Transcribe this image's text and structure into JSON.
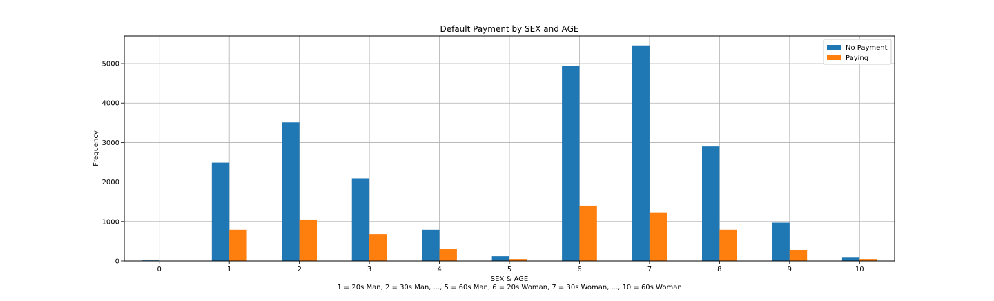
{
  "chart_data": {
    "type": "bar",
    "title": "Default Payment by SEX and AGE",
    "xlabel": "SEX & AGE",
    "xlabel_subtitle": "1 = 20s Man, 2 = 30s Man, ..., 5 = 60s Man, 6 = 20s Woman, 7 = 30s Woman, ..., 10 = 60s Woman",
    "ylabel": "Frequency",
    "categories": [
      "0",
      "1",
      "2",
      "3",
      "4",
      "5",
      "6",
      "7",
      "8",
      "9",
      "10"
    ],
    "series": [
      {
        "name": "No Payment",
        "color": "#1f77b4",
        "values": [
          15,
          2490,
          3510,
          2090,
          790,
          120,
          4940,
          5460,
          2900,
          970,
          100
        ]
      },
      {
        "name": "Paying",
        "color": "#ff7f0e",
        "values": [
          2,
          790,
          1050,
          680,
          300,
          50,
          1400,
          1230,
          790,
          280,
          50
        ]
      }
    ],
    "yticks": [
      0,
      1000,
      2000,
      3000,
      4000,
      5000
    ],
    "ylim": [
      0,
      5700
    ],
    "grid": true,
    "legend_position": "top-right"
  }
}
